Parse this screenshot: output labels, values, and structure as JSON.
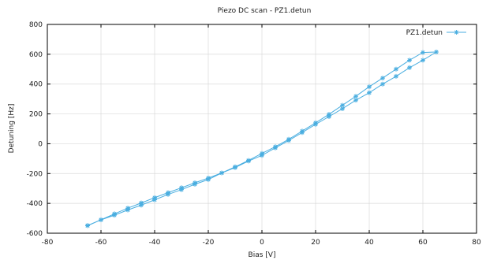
{
  "chart_data": {
    "type": "line",
    "title": "Piezo DC scan - PZ1.detun",
    "xlabel": "Bias [V]",
    "ylabel": "Detuning [Hz]",
    "xlim": [
      -80,
      80
    ],
    "ylim": [
      -600,
      800
    ],
    "xticks": [
      -80,
      -60,
      -40,
      -20,
      0,
      20,
      40,
      60,
      80
    ],
    "yticks": [
      -600,
      -400,
      -200,
      0,
      200,
      400,
      600,
      800
    ],
    "grid": true,
    "legend_position": "top-right",
    "series_color": "#4aaee0",
    "marker": "asterisk",
    "series": [
      {
        "name": "PZ1.detun",
        "x": [
          -65,
          -60,
          -55,
          -50,
          -45,
          -40,
          -35,
          -30,
          -25,
          -20,
          -15,
          -10,
          -5,
          0,
          5,
          10,
          15,
          20,
          25,
          30,
          35,
          40,
          45,
          50,
          55,
          60,
          65,
          60,
          55,
          50,
          45,
          40,
          35,
          30,
          25,
          20,
          15,
          10,
          5,
          0,
          -5,
          -10,
          -15,
          -20,
          -25,
          -30,
          -35,
          -40,
          -45,
          -50,
          -55,
          -60,
          -65
        ],
        "y": [
          -548,
          -510,
          -470,
          -432,
          -397,
          -362,
          -328,
          -295,
          -262,
          -230,
          -196,
          -160,
          -116,
          -78,
          -28,
          22,
          75,
          130,
          182,
          235,
          292,
          342,
          400,
          452,
          510,
          560,
          615,
          612,
          560,
          500,
          440,
          382,
          318,
          258,
          197,
          140,
          85,
          30,
          -20,
          -65,
          -112,
          -155,
          -196,
          -240,
          -272,
          -308,
          -340,
          -376,
          -412,
          -444,
          -479,
          -510,
          -550
        ]
      }
    ]
  }
}
